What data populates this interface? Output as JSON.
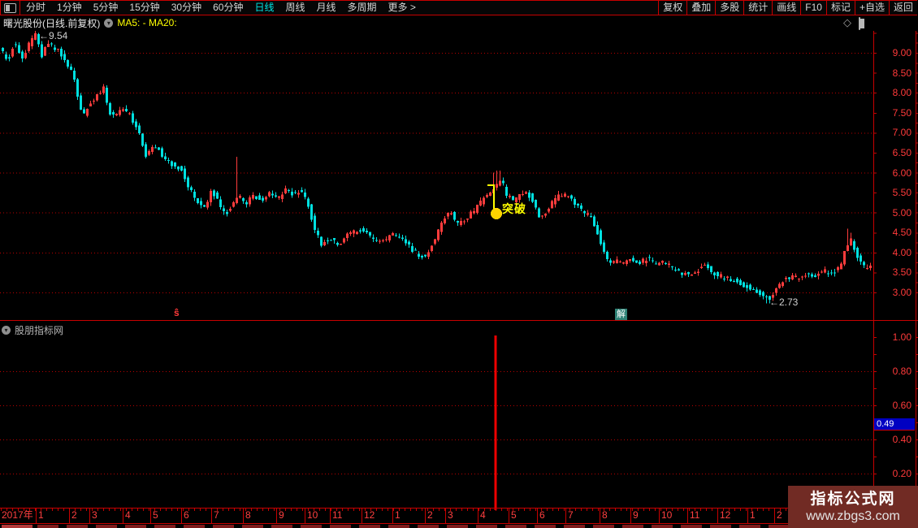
{
  "toolbar": {
    "left_items": [
      {
        "label": "分时",
        "active": false
      },
      {
        "label": "1分钟",
        "active": false
      },
      {
        "label": "5分钟",
        "active": false
      },
      {
        "label": "15分钟",
        "active": false
      },
      {
        "label": "30分钟",
        "active": false
      },
      {
        "label": "60分钟",
        "active": false
      },
      {
        "label": "日线",
        "active": true
      },
      {
        "label": "周线",
        "active": false
      },
      {
        "label": "月线",
        "active": false
      },
      {
        "label": "多周期",
        "active": false
      },
      {
        "label": "更多 >",
        "active": false
      }
    ],
    "right_items": [
      "复权",
      "叠加",
      "多股",
      "统计",
      "画线",
      "F10",
      "标记",
      "+自选",
      "返回"
    ]
  },
  "header": {
    "title": "曙光股份(日线.前复权)",
    "ma_label": "MA5: - MA20:"
  },
  "chart_data": [
    {
      "type": "candlestick",
      "symbol": "曙光股份",
      "period": "日线",
      "adjust": "前复权",
      "x_axis": {
        "start": "2017-01",
        "end": "2019-02",
        "unit": "month"
      },
      "y_axis": {
        "labels": [
          "9.00",
          "8.50",
          "8.00",
          "7.50",
          "7.00",
          "6.50",
          "6.00",
          "5.50",
          "5.00",
          "4.50",
          "4.00",
          "3.50",
          "3.00"
        ],
        "gridlines": [
          9,
          8,
          7,
          6,
          5,
          4,
          3
        ],
        "min": 2.5,
        "max": 9.6
      },
      "up_color": "#ff3c3c",
      "down_color": "#00e0e0",
      "price_path_anchors": [
        [
          0,
          9.1
        ],
        [
          8,
          8.75
        ],
        [
          16,
          9.3
        ],
        [
          26,
          8.9
        ],
        [
          34,
          9.2
        ],
        [
          42,
          9.45
        ],
        [
          50,
          8.95
        ],
        [
          58,
          9.25
        ],
        [
          70,
          9.05
        ],
        [
          80,
          8.75
        ],
        [
          88,
          8.55
        ],
        [
          100,
          7.35
        ],
        [
          108,
          7.7
        ],
        [
          118,
          7.95
        ],
        [
          126,
          8.1
        ],
        [
          136,
          7.35
        ],
        [
          146,
          7.6
        ],
        [
          158,
          7.45
        ],
        [
          168,
          7.1
        ],
        [
          178,
          6.45
        ],
        [
          188,
          6.7
        ],
        [
          198,
          6.45
        ],
        [
          210,
          6.2
        ],
        [
          222,
          6.05
        ],
        [
          232,
          5.6
        ],
        [
          242,
          5.25
        ],
        [
          252,
          5.1
        ],
        [
          258,
          5.6
        ],
        [
          266,
          5.3
        ],
        [
          276,
          4.95
        ],
        [
          286,
          5.25
        ],
        [
          292,
          5.45
        ],
        [
          300,
          5.2
        ],
        [
          310,
          5.45
        ],
        [
          320,
          5.3
        ],
        [
          330,
          5.5
        ],
        [
          340,
          5.35
        ],
        [
          350,
          5.6
        ],
        [
          360,
          5.45
        ],
        [
          370,
          5.55
        ],
        [
          378,
          5.15
        ],
        [
          386,
          4.6
        ],
        [
          394,
          4.2
        ],
        [
          404,
          4.35
        ],
        [
          414,
          4.2
        ],
        [
          424,
          4.4
        ],
        [
          434,
          4.5
        ],
        [
          444,
          4.6
        ],
        [
          454,
          4.4
        ],
        [
          464,
          4.25
        ],
        [
          474,
          4.35
        ],
        [
          484,
          4.45
        ],
        [
          494,
          4.3
        ],
        [
          504,
          4.1
        ],
        [
          514,
          3.95
        ],
        [
          522,
          3.9
        ],
        [
          532,
          4.25
        ],
        [
          542,
          4.75
        ],
        [
          552,
          5.05
        ],
        [
          562,
          4.7
        ],
        [
          572,
          4.85
        ],
        [
          582,
          5.05
        ],
        [
          592,
          5.3
        ],
        [
          602,
          5.5
        ],
        [
          610,
          5.7
        ],
        [
          616,
          5.8
        ],
        [
          622,
          5.45
        ],
        [
          630,
          5.3
        ],
        [
          638,
          5.45
        ],
        [
          646,
          5.55
        ],
        [
          654,
          5.3
        ],
        [
          662,
          4.85
        ],
        [
          670,
          5.0
        ],
        [
          678,
          5.25
        ],
        [
          686,
          5.4
        ],
        [
          694,
          5.45
        ],
        [
          702,
          5.3
        ],
        [
          710,
          5.15
        ],
        [
          718,
          5.0
        ],
        [
          726,
          4.85
        ],
        [
          734,
          4.5
        ],
        [
          742,
          4.0
        ],
        [
          750,
          3.7
        ],
        [
          758,
          3.8
        ],
        [
          766,
          3.75
        ],
        [
          776,
          3.85
        ],
        [
          786,
          3.75
        ],
        [
          796,
          3.85
        ],
        [
          806,
          3.7
        ],
        [
          816,
          3.75
        ],
        [
          826,
          3.6
        ],
        [
          836,
          3.5
        ],
        [
          846,
          3.45
        ],
        [
          856,
          3.55
        ],
        [
          866,
          3.7
        ],
        [
          876,
          3.5
        ],
        [
          886,
          3.4
        ],
        [
          896,
          3.35
        ],
        [
          906,
          3.25
        ],
        [
          916,
          3.15
        ],
        [
          926,
          3.1
        ],
        [
          936,
          2.95
        ],
        [
          946,
          2.85
        ],
        [
          954,
          3.1
        ],
        [
          962,
          3.3
        ],
        [
          972,
          3.4
        ],
        [
          982,
          3.35
        ],
        [
          992,
          3.45
        ],
        [
          1002,
          3.4
        ],
        [
          1012,
          3.55
        ],
        [
          1022,
          3.5
        ],
        [
          1032,
          3.6
        ],
        [
          1040,
          4.15
        ],
        [
          1046,
          4.3
        ],
        [
          1052,
          3.95
        ],
        [
          1058,
          3.75
        ],
        [
          1064,
          3.6
        ],
        [
          1072,
          3.65
        ]
      ],
      "wick_spikes": [
        {
          "x": 292,
          "p": 6.4,
          "side": "high"
        },
        {
          "x": 610,
          "p": 6.0,
          "side": "high"
        },
        {
          "x": 614,
          "p": 6.05,
          "side": "high"
        },
        {
          "x": 946,
          "p": 2.73,
          "side": "low"
        },
        {
          "x": 1044,
          "p": 4.6,
          "side": "high"
        },
        {
          "x": 1048,
          "p": 4.5,
          "side": "high"
        }
      ],
      "annotations": [
        {
          "text": "←9.54",
          "x": 48,
          "y": 37
        },
        {
          "text": "←2.73",
          "x": 947,
          "y": 365
        }
      ],
      "signal_marks": [
        {
          "type": "sell",
          "text": "ŝ",
          "x": 214,
          "y": 378
        },
        {
          "type": "hold-badge",
          "text": "解",
          "x": 757,
          "y": 380
        },
        {
          "type": "buy",
          "text": "突破",
          "line_points": [
            [
              600,
              228
            ],
            [
              608,
              228
            ],
            [
              608,
              258
            ]
          ],
          "dot": {
            "x": 611,
            "y": 263,
            "r": 7
          },
          "text_pos": [
            618,
            247
          ]
        }
      ]
    },
    {
      "type": "bar",
      "name": "股朋指标网",
      "ylim": [
        0,
        1.1
      ],
      "y_labels": [
        "1.00",
        "0.80",
        "0.60",
        "0.40",
        "0.20"
      ],
      "gridline_values": [
        0.8,
        0.6,
        0.4,
        0.2
      ],
      "bars": [
        {
          "x": 610,
          "value": 1.01
        }
      ],
      "bar_color": "#ee0000",
      "last_value": "0.49"
    }
  ],
  "time_axis": {
    "labels": [
      "2017年",
      "1",
      "2",
      "3",
      "4",
      "5",
      "6",
      "7",
      "8",
      "9",
      "10",
      "11",
      "12",
      "1",
      "2",
      "3",
      "4",
      "5",
      "6",
      "7",
      "8",
      "9",
      "10",
      "11",
      "12",
      "1",
      "2"
    ],
    "boundaries": [
      0,
      44,
      85,
      110,
      151,
      185,
      223,
      260,
      299,
      340,
      375,
      406,
      445,
      483,
      523,
      548,
      588,
      626,
      661,
      696,
      738,
      776,
      811,
      846,
      883,
      920,
      953,
      995
    ]
  },
  "watermark": {
    "line1": "指标公式网",
    "line2": "www.zbgs3.com"
  },
  "colors": {
    "border_red": "#c80000",
    "grid_red": "#b80000",
    "label_red": "#ff3a3a",
    "candle_up": "#ff3c3c",
    "candle_down": "#00e0e0",
    "signal_yellow": "#ffff00",
    "dot_yellow": "#ffd400",
    "active_cyan": "#00e5e5",
    "last_value_bg": "#0000c2",
    "hold_badge_teal": "#2e8276",
    "watermark_bg": "#712b24"
  }
}
